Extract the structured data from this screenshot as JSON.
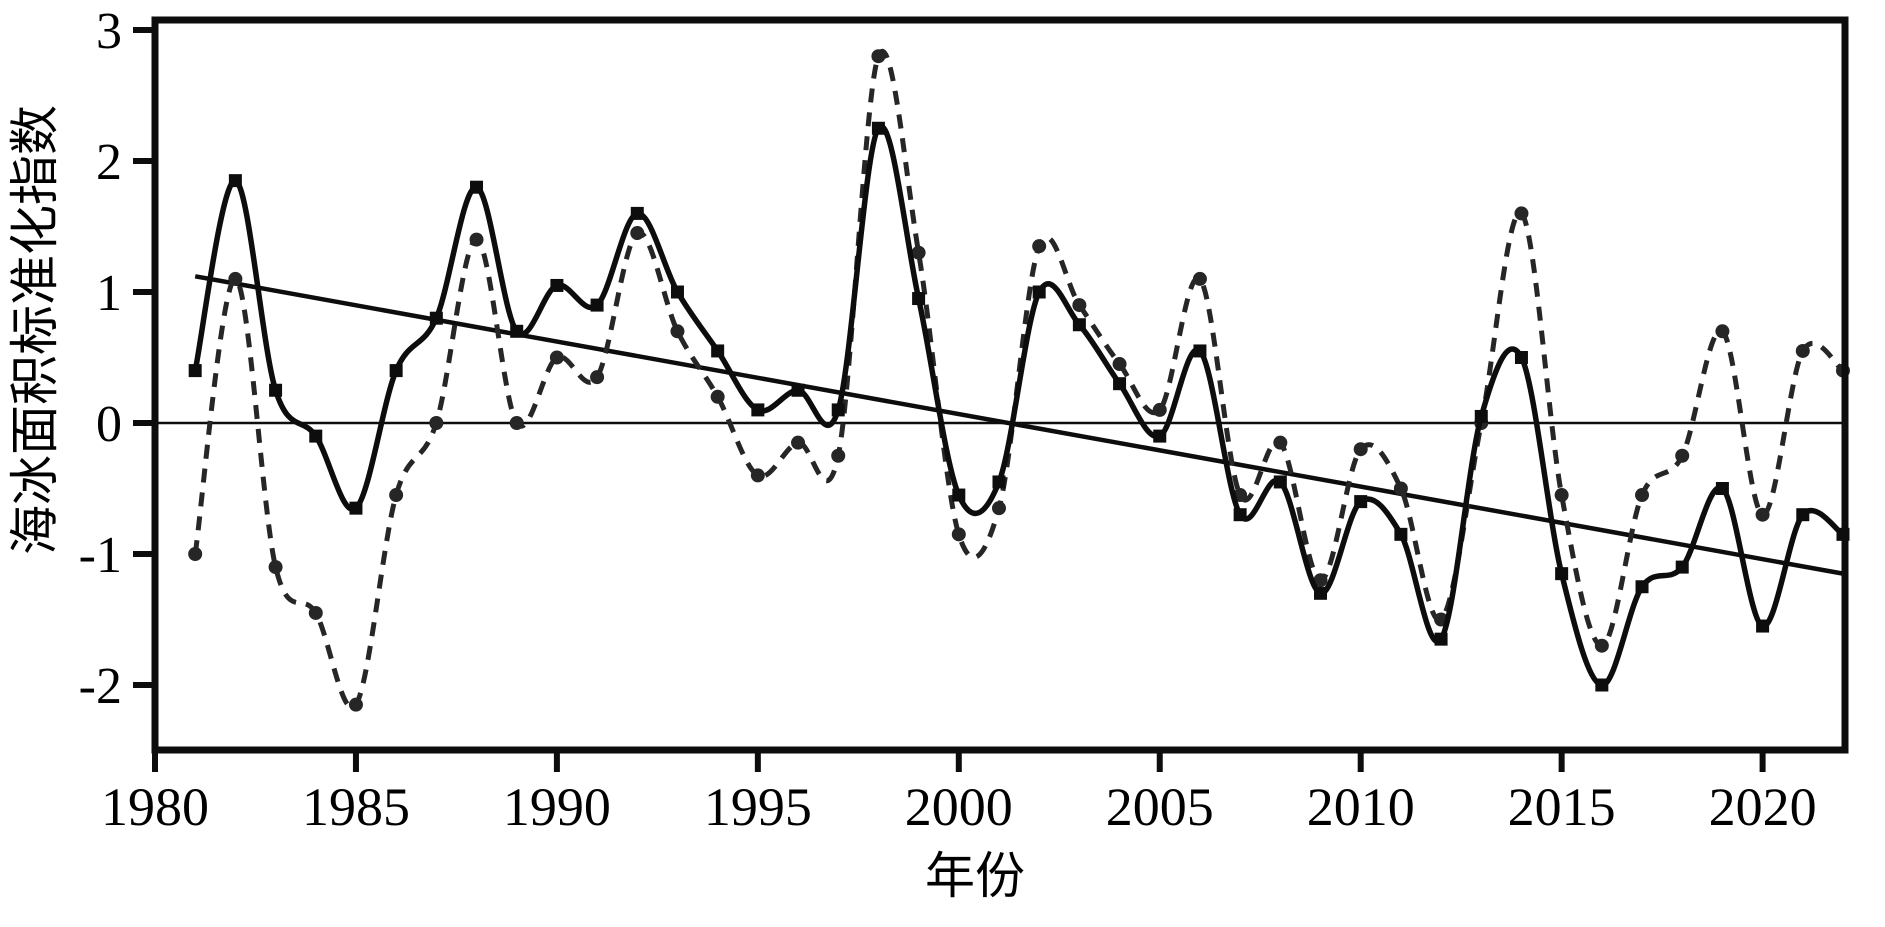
{
  "figure": {
    "background": "#ffffff",
    "ink_color": "#0d0d0d",
    "dashed_color": "#262626"
  },
  "chart_data": {
    "type": "line",
    "title": "",
    "xlabel": "年份",
    "ylabel": "海冰面积标准化指数",
    "grid": false,
    "legend": "none",
    "xlim": [
      1980,
      2022.2
    ],
    "ylim": [
      -2.5,
      3.1
    ],
    "x_ticks": [
      1980,
      1985,
      1990,
      1995,
      2000,
      2005,
      2010,
      2015,
      2020
    ],
    "y_ticks": [
      3,
      2,
      1,
      0,
      -1,
      -2
    ],
    "zero_line": 0,
    "x": [
      1981,
      1982,
      1983,
      1984,
      1985,
      1986,
      1987,
      1988,
      1989,
      1990,
      1991,
      1992,
      1993,
      1994,
      1995,
      1996,
      1997,
      1998,
      1999,
      2000,
      2001,
      2002,
      2003,
      2004,
      2005,
      2006,
      2007,
      2008,
      2009,
      2010,
      2011,
      2012,
      2013,
      2014,
      2015,
      2016,
      2017,
      2018,
      2019,
      2020,
      2021,
      2022
    ],
    "series": [
      {
        "name": "solid-square-series",
        "line_style": "solid",
        "marker": "square",
        "color": "#0d0d0d",
        "values": [
          0.4,
          1.85,
          0.25,
          -0.1,
          -0.65,
          0.4,
          0.8,
          1.8,
          0.7,
          1.05,
          0.9,
          1.6,
          1.0,
          0.55,
          0.1,
          0.25,
          0.1,
          2.25,
          0.95,
          -0.55,
          -0.45,
          1.0,
          0.75,
          0.3,
          -0.1,
          0.55,
          -0.7,
          -0.45,
          -1.3,
          -0.6,
          -0.85,
          -1.65,
          0.05,
          0.5,
          -1.15,
          -2.0,
          -1.25,
          -1.1,
          -0.5,
          -1.55,
          -0.7,
          -0.85
        ]
      },
      {
        "name": "dashed-circle-series",
        "line_style": "dashed",
        "marker": "circle",
        "color": "#262626",
        "values": [
          -1.0,
          1.1,
          -1.1,
          -1.45,
          -2.15,
          -0.55,
          0.0,
          1.4,
          0.0,
          0.5,
          0.35,
          1.45,
          0.7,
          0.2,
          -0.4,
          -0.15,
          -0.25,
          2.8,
          1.3,
          -0.85,
          -0.65,
          1.35,
          0.9,
          0.45,
          0.1,
          1.1,
          -0.55,
          -0.15,
          -1.2,
          -0.2,
          -0.5,
          -1.5,
          0.0,
          1.6,
          -0.55,
          -1.7,
          -0.55,
          -0.25,
          0.7,
          -0.7,
          0.55,
          0.4
        ]
      }
    ],
    "trend_line": {
      "x_start": 1981,
      "y_start": 1.12,
      "x_end": 2022,
      "y_end": -1.15
    }
  }
}
